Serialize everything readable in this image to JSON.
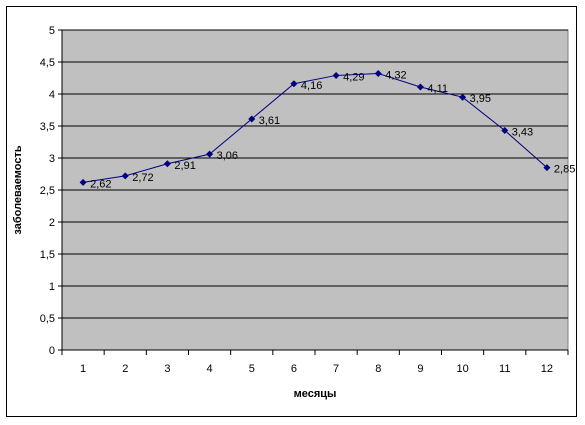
{
  "chart_data": {
    "type": "line",
    "title": "",
    "xlabel": "месяцы",
    "ylabel": "заболеваемость",
    "categories": [
      "1",
      "2",
      "3",
      "4",
      "5",
      "6",
      "7",
      "8",
      "9",
      "10",
      "11",
      "12"
    ],
    "series": [
      {
        "values": [
          2.62,
          2.72,
          2.91,
          3.06,
          3.61,
          4.16,
          4.29,
          4.32,
          4.11,
          3.95,
          3.43,
          2.85
        ],
        "data_labels": [
          "2,62",
          "2,72",
          "2,91",
          "3,06",
          "3,61",
          "4,16",
          "4,29",
          "4,32",
          "4,11",
          "3,95",
          "3,43",
          "2,85"
        ]
      }
    ],
    "ylim": [
      0,
      5
    ],
    "yticks": [
      "0",
      "0,5",
      "1",
      "1,5",
      "2",
      "2,5",
      "3",
      "3,5",
      "4",
      "4,5",
      "5"
    ],
    "grid": true,
    "legend": "none",
    "colors": {
      "plot_background": "#c0c0c0",
      "line": "#000080",
      "marker": "#000080",
      "gridline": "#000000"
    }
  }
}
